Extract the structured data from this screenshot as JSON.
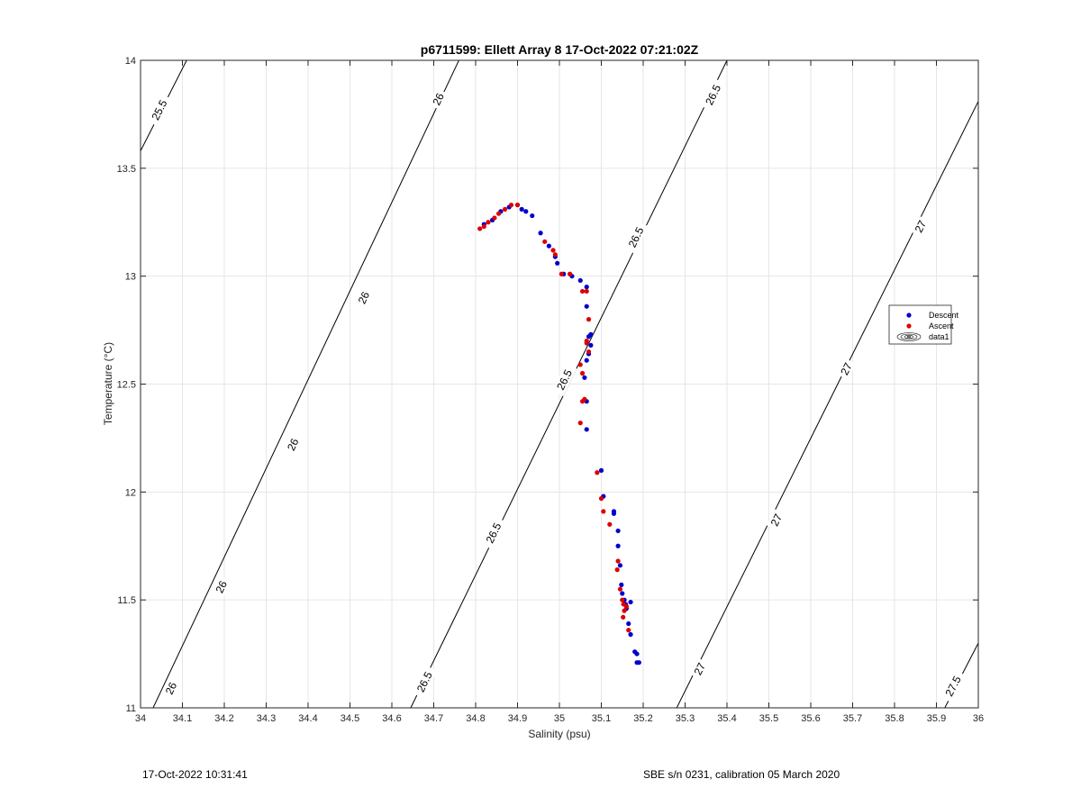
{
  "chart_data": {
    "type": "scatter",
    "title": "p6711599: Ellett Array 8 17-Oct-2022 07:21:02Z",
    "xlabel": "Salinity (psu)",
    "ylabel": "Temperature (°C)",
    "xlim": [
      34,
      36
    ],
    "ylim": [
      11,
      14
    ],
    "grid": true,
    "legend_placement": "east",
    "x_ticks": [
      "34",
      "34.1",
      "34.2",
      "34.3",
      "34.4",
      "34.5",
      "34.6",
      "34.7",
      "34.8",
      "34.9",
      "35",
      "35.1",
      "35.2",
      "35.3",
      "35.4",
      "35.5",
      "35.6",
      "35.7",
      "35.8",
      "35.9",
      "36"
    ],
    "y_ticks": [
      "11",
      "11.5",
      "12",
      "12.5",
      "13",
      "13.5",
      "14"
    ],
    "density_contours": {
      "levels": [
        25.5,
        26,
        26.5,
        27,
        27.5
      ],
      "lines": [
        {
          "level": 25.5,
          "points": [
            [
              34,
              13.58
            ],
            [
              34.11,
              14
            ]
          ]
        },
        {
          "level": 26,
          "points": [
            [
              34.03,
              11
            ],
            [
              34.76,
              14
            ]
          ]
        },
        {
          "level": 26.5,
          "points": [
            [
              34.645,
              11
            ],
            [
              35.4,
              14
            ]
          ]
        },
        {
          "level": 27,
          "points": [
            [
              35.28,
              11
            ],
            [
              36,
              13.81
            ]
          ]
        },
        {
          "level": 27.5,
          "points": [
            [
              35.92,
              11
            ],
            [
              36,
              11.3
            ]
          ]
        }
      ],
      "labels": [
        {
          "text": "25.5",
          "at": [
            34.045,
            13.77
          ]
        },
        {
          "text": "26",
          "at": [
            34.073,
            11.09
          ]
        },
        {
          "text": "26",
          "at": [
            34.193,
            11.56
          ]
        },
        {
          "text": "26",
          "at": [
            34.364,
            12.22
          ]
        },
        {
          "text": "26",
          "at": [
            34.533,
            12.9
          ]
        },
        {
          "text": "26",
          "at": [
            34.711,
            13.82
          ]
        },
        {
          "text": "26.5",
          "at": [
            34.678,
            11.12
          ]
        },
        {
          "text": "26.5",
          "at": [
            34.843,
            11.81
          ]
        },
        {
          "text": "26.5",
          "at": [
            35.012,
            12.52
          ]
        },
        {
          "text": "26.5",
          "at": [
            35.183,
            13.18
          ]
        },
        {
          "text": "26.5",
          "at": [
            35.367,
            13.84
          ]
        },
        {
          "text": "27",
          "at": [
            35.335,
            11.18
          ]
        },
        {
          "text": "27",
          "at": [
            35.518,
            11.87
          ]
        },
        {
          "text": "27",
          "at": [
            35.685,
            12.57
          ]
        },
        {
          "text": "27",
          "at": [
            35.862,
            13.23
          ]
        },
        {
          "text": "27.5",
          "at": [
            35.94,
            11.1
          ]
        }
      ]
    },
    "series": [
      {
        "name": "Descent",
        "color": "#0000cc",
        "points": [
          [
            34.82,
            13.24
          ],
          [
            34.84,
            13.26
          ],
          [
            34.86,
            13.3
          ],
          [
            34.88,
            13.32
          ],
          [
            34.9,
            13.33
          ],
          [
            34.91,
            13.31
          ],
          [
            34.92,
            13.3
          ],
          [
            34.935,
            13.28
          ],
          [
            34.955,
            13.2
          ],
          [
            34.975,
            13.14
          ],
          [
            34.99,
            13.09
          ],
          [
            34.995,
            13.06
          ],
          [
            35.01,
            13.01
          ],
          [
            35.03,
            13.0
          ],
          [
            35.05,
            12.98
          ],
          [
            35.065,
            12.95
          ],
          [
            35.065,
            12.86
          ],
          [
            35.07,
            12.72
          ],
          [
            35.075,
            12.73
          ],
          [
            35.075,
            12.68
          ],
          [
            35.07,
            12.64
          ],
          [
            35.065,
            12.61
          ],
          [
            35.06,
            12.53
          ],
          [
            35.065,
            12.42
          ],
          [
            35.065,
            12.29
          ],
          [
            35.1,
            12.1
          ],
          [
            35.105,
            11.98
          ],
          [
            35.13,
            11.91
          ],
          [
            35.13,
            11.9
          ],
          [
            35.14,
            11.82
          ],
          [
            35.14,
            11.75
          ],
          [
            35.145,
            11.66
          ],
          [
            35.148,
            11.57
          ],
          [
            35.15,
            11.53
          ],
          [
            35.155,
            11.5
          ],
          [
            35.158,
            11.48
          ],
          [
            35.16,
            11.46
          ],
          [
            35.17,
            11.49
          ],
          [
            35.165,
            11.39
          ],
          [
            35.17,
            11.34
          ],
          [
            35.18,
            11.26
          ],
          [
            35.185,
            11.25
          ],
          [
            35.19,
            11.21
          ],
          [
            35.185,
            11.21
          ]
        ]
      },
      {
        "name": "Ascent",
        "color": "#dd0000",
        "points": [
          [
            34.81,
            13.22
          ],
          [
            34.82,
            13.23
          ],
          [
            34.83,
            13.25
          ],
          [
            34.845,
            13.27
          ],
          [
            34.855,
            13.29
          ],
          [
            34.87,
            13.31
          ],
          [
            34.885,
            13.33
          ],
          [
            34.9,
            13.33
          ],
          [
            34.965,
            13.16
          ],
          [
            34.985,
            13.12
          ],
          [
            34.99,
            13.1
          ],
          [
            35.005,
            13.01
          ],
          [
            35.025,
            13.01
          ],
          [
            35.055,
            12.93
          ],
          [
            35.065,
            12.93
          ],
          [
            35.07,
            12.8
          ],
          [
            35.065,
            12.7
          ],
          [
            35.065,
            12.69
          ],
          [
            35.07,
            12.65
          ],
          [
            35.05,
            12.59
          ],
          [
            35.055,
            12.55
          ],
          [
            35.06,
            12.43
          ],
          [
            35.055,
            12.42
          ],
          [
            35.05,
            12.32
          ],
          [
            35.09,
            12.09
          ],
          [
            35.1,
            11.97
          ],
          [
            35.105,
            11.91
          ],
          [
            35.12,
            11.85
          ],
          [
            35.14,
            11.68
          ],
          [
            35.138,
            11.64
          ],
          [
            35.145,
            11.55
          ],
          [
            35.15,
            11.5
          ],
          [
            35.153,
            11.48
          ],
          [
            35.155,
            11.45
          ],
          [
            35.16,
            11.47
          ],
          [
            35.152,
            11.42
          ],
          [
            35.165,
            11.36
          ]
        ]
      },
      {
        "name": "data1",
        "color": "#000000",
        "points": []
      }
    ]
  },
  "footer": {
    "left": "17-Oct-2022 10:31:41",
    "right": "SBE s/n 0231, calibration 05 March 2020"
  }
}
